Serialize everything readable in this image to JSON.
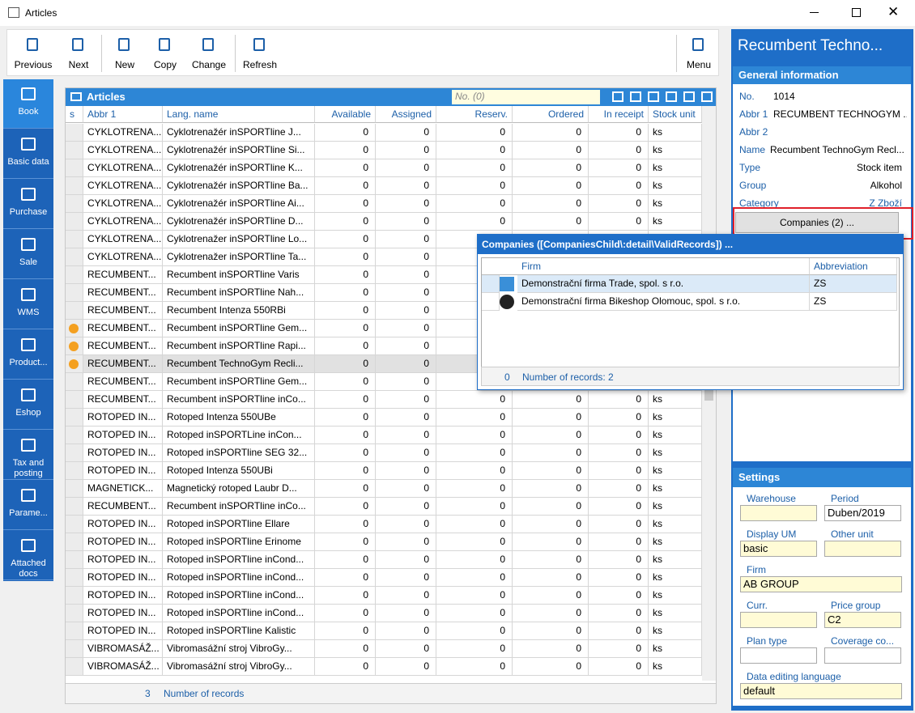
{
  "window": {
    "title": "Articles"
  },
  "toolbar": [
    "Previous",
    "Next",
    "New",
    "Copy",
    "Change",
    "Refresh",
    "Menu"
  ],
  "nav": [
    "Book",
    "Basic data",
    "Purchase",
    "Sale",
    "WMS",
    "Product...",
    "Eshop",
    "Tax and posting",
    "Parame...",
    "Attached docs"
  ],
  "grid": {
    "title": "Articles",
    "search": "No. (0)",
    "columns": [
      "s",
      "Abbr 1",
      "Lang. name",
      "Available",
      "Assigned",
      "Reserv.",
      "Ordered",
      "In receipt",
      "Stock unit"
    ],
    "rows": [
      [
        "CYKLOTRENA...",
        "Cyklotrenažér inSPORTline J...",
        0,
        0,
        0,
        0,
        0,
        "ks"
      ],
      [
        "CYKLOTRENA...",
        "Cyklotrenažér inSPORTline Si...",
        0,
        0,
        0,
        0,
        0,
        "ks"
      ],
      [
        "CYKLOTRENA...",
        "Cyklotrenažér inSPORTline K...",
        0,
        0,
        0,
        0,
        0,
        "ks"
      ],
      [
        "CYKLOTRENA...",
        "Cyklotrenažér inSPORTline Ba...",
        0,
        0,
        0,
        0,
        0,
        "ks"
      ],
      [
        "CYKLOTRENA...",
        "Cyklotrenažér inSPORTline Ai...",
        0,
        0,
        0,
        0,
        0,
        "ks"
      ],
      [
        "CYKLOTRENA...",
        "Cyklotrenažér inSPORTline D...",
        0,
        0,
        0,
        0,
        0,
        "ks"
      ],
      [
        "CYKLOTRENA...",
        "Cyklotrenažer inSPORTline Lo...",
        0,
        0,
        null,
        null,
        null,
        null
      ],
      [
        "CYKLOTRENA...",
        "Cyklotrenažer inSPORTline Ta...",
        0,
        0,
        null,
        null,
        null,
        null
      ],
      [
        "RECUMBENT...",
        "Recumbent inSPORTline Varis",
        0,
        0,
        null,
        null,
        null,
        null
      ],
      [
        "RECUMBENT...",
        "Recumbent inSPORTline Nah...",
        0,
        0,
        null,
        null,
        null,
        null
      ],
      [
        "RECUMBENT...",
        "Recumbent Intenza 550RBi",
        0,
        0,
        null,
        null,
        null,
        null
      ],
      [
        "RECUMBENT...",
        "Recumbent inSPORTline Gem...",
        0,
        0,
        null,
        null,
        null,
        null
      ],
      [
        "RECUMBENT...",
        "Recumbent inSPORTline Rapi...",
        0,
        0,
        null,
        null,
        null,
        null
      ],
      [
        "RECUMBENT...",
        "Recumbent TechnoGym Recli...",
        0,
        0,
        null,
        null,
        null,
        null
      ],
      [
        "RECUMBENT...",
        "Recumbent inSPORTline Gem...",
        0,
        0,
        null,
        null,
        null,
        null
      ],
      [
        "RECUMBENT...",
        "Recumbent inSPORTline inCo...",
        0,
        0,
        0,
        0,
        0,
        "ks"
      ],
      [
        "ROTOPED IN...",
        "Rotoped Intenza 550UBe",
        0,
        0,
        0,
        0,
        0,
        "ks"
      ],
      [
        "ROTOPED IN...",
        "Rotoped inSPORTLine inCon...",
        0,
        0,
        0,
        0,
        0,
        "ks"
      ],
      [
        "ROTOPED IN...",
        "Rotoped inSPORTline SEG 32...",
        0,
        0,
        0,
        0,
        0,
        "ks"
      ],
      [
        "ROTOPED IN...",
        "Rotoped Intenza 550UBi",
        0,
        0,
        0,
        0,
        0,
        "ks"
      ],
      [
        "MAGNETICK...",
        "Magnetický rotoped Laubr D...",
        0,
        0,
        0,
        0,
        0,
        "ks"
      ],
      [
        "RECUMBENT...",
        "Recumbent inSPORTline inCo...",
        0,
        0,
        0,
        0,
        0,
        "ks"
      ],
      [
        "ROTOPED IN...",
        "Rotoped inSPORTline Ellare",
        0,
        0,
        0,
        0,
        0,
        "ks"
      ],
      [
        "ROTOPED IN...",
        "Rotoped inSPORTline Erinome",
        0,
        0,
        0,
        0,
        0,
        "ks"
      ],
      [
        "ROTOPED IN...",
        "Rotoped inSPORTline inCond...",
        0,
        0,
        0,
        0,
        0,
        "ks"
      ],
      [
        "ROTOPED IN...",
        "Rotoped inSPORTline inCond...",
        0,
        0,
        0,
        0,
        0,
        "ks"
      ],
      [
        "ROTOPED IN...",
        "Rotoped inSPORTline inCond...",
        0,
        0,
        0,
        0,
        0,
        "ks"
      ],
      [
        "ROTOPED IN...",
        "Rotoped inSPORTline inCond...",
        0,
        0,
        0,
        0,
        0,
        "ks"
      ],
      [
        "ROTOPED IN...",
        "Rotoped inSPORTline Kalistic",
        0,
        0,
        0,
        0,
        0,
        "ks"
      ],
      [
        "VIBROMASÁŽ...",
        "Vibromasážní stroj VibroGy...",
        0,
        0,
        0,
        0,
        0,
        "ks"
      ],
      [
        "VIBROMASÁŽ...",
        "Vibromasážní stroj VibroGy...",
        0,
        0,
        0,
        0,
        0,
        "ks"
      ]
    ],
    "marked_rows": [
      11,
      12,
      13
    ],
    "selected_row": 13,
    "footer_count": 3,
    "footer_label": "Number of records"
  },
  "detail": {
    "title": "Recumbent Techno...",
    "section": "General information",
    "fields": [
      {
        "label": "No.",
        "value": 1014
      },
      {
        "label": "Abbr 1",
        "value": "RECUMBENT TECHNOGYM ..."
      },
      {
        "label": "Abbr 2",
        "value": null
      },
      {
        "label": "Name",
        "value": "Recumbent TechnoGym Recl..."
      },
      {
        "label": "Type",
        "value": "Stock item"
      },
      {
        "label": "Group",
        "value": "Alkohol"
      },
      {
        "label": "Category",
        "value": "Z Zboží"
      }
    ],
    "companies_button": "Companies (2) ...",
    "settings_title": "Settings",
    "settings": [
      {
        "label": "Warehouse",
        "value": null
      },
      {
        "label": "Period",
        "value": "Duben/2019"
      },
      {
        "label": "Display UM",
        "value": "basic"
      },
      {
        "label": "Other unit",
        "value": null
      },
      {
        "label": "Firm",
        "value": "AB GROUP"
      },
      {
        "label": "Curr.",
        "value": null
      },
      {
        "label": "Price group",
        "value": "C2"
      },
      {
        "label": "Plan type",
        "value": null
      },
      {
        "label": "Coverage co...",
        "value": null
      },
      {
        "label": "Data editing language",
        "value": "default"
      }
    ]
  },
  "popup": {
    "title": "Companies ([CompaniesChild\\:detail\\ValidRecords]) ...",
    "columns": [
      "Firm",
      "Abbreviation"
    ],
    "rows": [
      [
        "Demonstrační firma Trade, spol. s r.o.",
        "ZS"
      ],
      [
        "Demonstrační firma Bikeshop Olomouc, spol. s r.o.",
        "ZS"
      ]
    ],
    "footer_count": 0,
    "footer_label": "Number of records: 2"
  }
}
